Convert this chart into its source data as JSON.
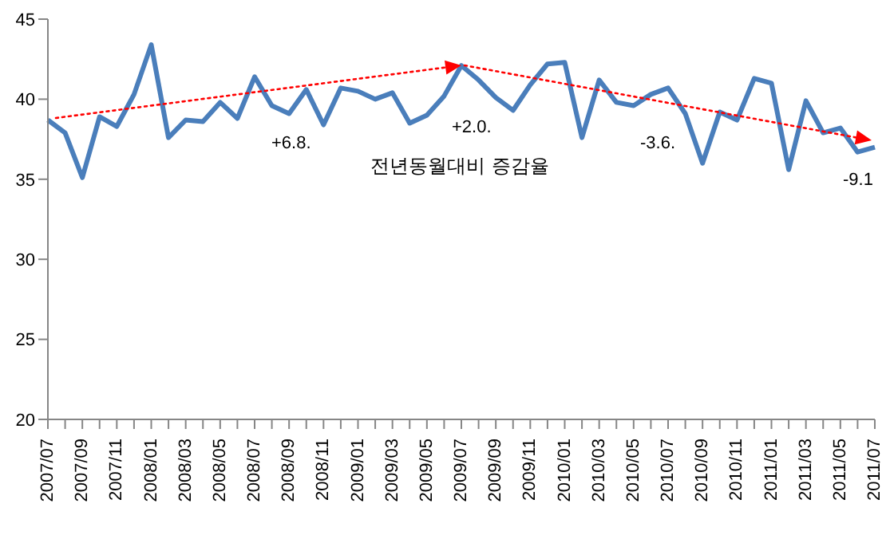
{
  "chart_data": {
    "type": "line",
    "categories": [
      "2007/07",
      null,
      "2007/09",
      null,
      "2007/11",
      null,
      "2008/01",
      null,
      "2008/03",
      null,
      "2008/05",
      null,
      "2008/07",
      null,
      "2008/09",
      null,
      "2008/11",
      null,
      "2009/01",
      null,
      "2009/03",
      null,
      "2009/05",
      null,
      "2009/07",
      null,
      "2009/09",
      null,
      "2009/11",
      null,
      "2010/01",
      null,
      "2010/03",
      null,
      "2010/05",
      null,
      "2010/07",
      null,
      "2010/09",
      null,
      "2010/11",
      null,
      "2011/01",
      null,
      "2011/03",
      null,
      "2011/05",
      null,
      "2011/07"
    ],
    "series": [
      {
        "color": "#4a7ebb",
        "values": [
          38.7,
          37.9,
          35.1,
          38.9,
          38.3,
          40.3,
          43.4,
          37.6,
          38.7,
          38.6,
          39.8,
          38.8,
          41.4,
          39.6,
          39.1,
          40.6,
          38.4,
          40.7,
          40.5,
          40.0,
          40.4,
          38.5,
          39.0,
          40.2,
          42.1,
          41.2,
          40.1,
          39.3,
          40.9,
          42.2,
          42.3,
          37.6,
          41.2,
          39.8,
          39.6,
          40.3,
          40.7,
          39.1,
          36.0,
          39.2,
          38.7,
          41.3,
          41.0,
          35.6,
          39.9,
          37.9,
          38.2,
          36.7,
          37.0
        ]
      }
    ],
    "ylim": [
      20,
      45
    ],
    "yticks": [
      20,
      25,
      30,
      35,
      40,
      45
    ],
    "line_style": "solid",
    "annotations": [
      "+6.8.",
      "+2.0.",
      "전년동월대비 증감율",
      "-3.6.",
      "-9.1"
    ]
  }
}
